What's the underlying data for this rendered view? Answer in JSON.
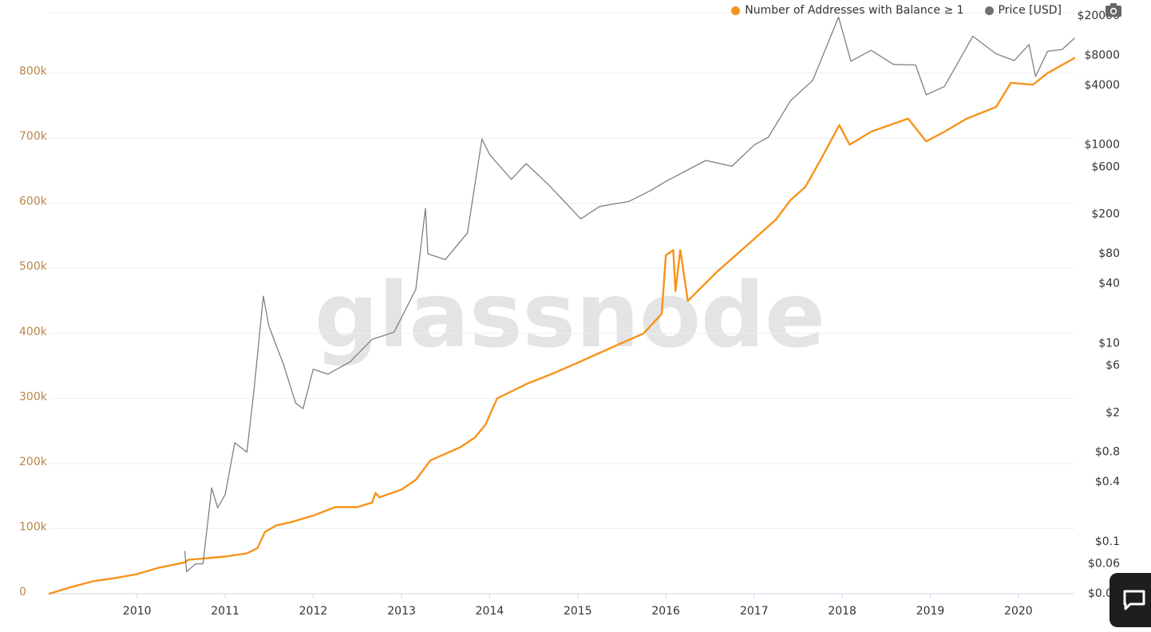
{
  "chart_data": {
    "type": "line",
    "title": "",
    "watermark": "glassnode",
    "legend_position": "top-right",
    "grid": true,
    "x_axis": {
      "type": "date",
      "range": [
        "2009-01-03",
        "2020-08-20"
      ],
      "tick_labels": [
        "2010",
        "2011",
        "2012",
        "2013",
        "2014",
        "2015",
        "2016",
        "2017",
        "2018",
        "2019",
        "2020"
      ]
    },
    "y_left": {
      "range": [
        0,
        900000
      ],
      "tick_values": [
        0,
        100000,
        200000,
        300000,
        400000,
        500000,
        600000,
        700000,
        800000
      ],
      "tick_labels": [
        "0",
        "100k",
        "200k",
        "300k",
        "400k",
        "500k",
        "600k",
        "700k",
        "800k"
      ],
      "color": "#b8864b"
    },
    "y_right": {
      "scale": "log",
      "range": [
        0.03,
        20000
      ],
      "tick_values": [
        0.03,
        0.06,
        0.1,
        0.4,
        0.8,
        2,
        6,
        10,
        40,
        80,
        200,
        600,
        1000,
        4000,
        8000,
        20000
      ],
      "tick_labels": [
        "$0.03",
        "$0.06",
        "$0.1",
        "$0.4",
        "$0.8",
        "$2",
        "$6",
        "$10",
        "$40",
        "$80",
        "$200",
        "$600",
        "$1000",
        "$4000",
        "$8000",
        "$20000"
      ],
      "color": "#333333"
    },
    "series": [
      {
        "name": "Number of Addresses with Balance ≥ 1",
        "color": "#f7931a",
        "axis": "left",
        "points": [
          [
            "2009-01-03",
            0
          ],
          [
            "2009-04-01",
            10000
          ],
          [
            "2009-07-01",
            19000
          ],
          [
            "2009-10-01",
            24000
          ],
          [
            "2010-01-01",
            30000
          ],
          [
            "2010-04-01",
            40000
          ],
          [
            "2010-07-15",
            48000
          ],
          [
            "2010-08-01",
            52000
          ],
          [
            "2011-01-01",
            57000
          ],
          [
            "2011-04-01",
            62000
          ],
          [
            "2011-05-15",
            70000
          ],
          [
            "2011-06-15",
            95000
          ],
          [
            "2011-08-01",
            105000
          ],
          [
            "2011-10-01",
            110000
          ],
          [
            "2012-01-01",
            120000
          ],
          [
            "2012-04-01",
            133000
          ],
          [
            "2012-07-01",
            133000
          ],
          [
            "2012-09-01",
            140000
          ],
          [
            "2012-09-15",
            155000
          ],
          [
            "2012-10-01",
            148000
          ],
          [
            "2013-01-01",
            160000
          ],
          [
            "2013-03-01",
            175000
          ],
          [
            "2013-05-01",
            205000
          ],
          [
            "2013-09-01",
            225000
          ],
          [
            "2013-11-01",
            240000
          ],
          [
            "2013-12-15",
            260000
          ],
          [
            "2014-02-01",
            300000
          ],
          [
            "2014-06-01",
            322000
          ],
          [
            "2014-10-01",
            340000
          ],
          [
            "2015-01-01",
            355000
          ],
          [
            "2015-06-01",
            380000
          ],
          [
            "2015-10-01",
            400000
          ],
          [
            "2015-12-15",
            430000
          ],
          [
            "2016-01-01",
            520000
          ],
          [
            "2016-02-01",
            528000
          ],
          [
            "2016-02-10",
            465000
          ],
          [
            "2016-03-01",
            528000
          ],
          [
            "2016-04-01",
            450000
          ],
          [
            "2016-08-01",
            495000
          ],
          [
            "2017-01-01",
            545000
          ],
          [
            "2017-04-01",
            575000
          ],
          [
            "2017-06-01",
            605000
          ],
          [
            "2017-08-01",
            625000
          ],
          [
            "2017-10-01",
            665000
          ],
          [
            "2017-12-20",
            720000
          ],
          [
            "2018-02-01",
            690000
          ],
          [
            "2018-05-01",
            710000
          ],
          [
            "2018-10-01",
            730000
          ],
          [
            "2018-12-15",
            695000
          ],
          [
            "2019-03-01",
            710000
          ],
          [
            "2019-06-01",
            730000
          ],
          [
            "2019-10-01",
            748000
          ],
          [
            "2019-12-01",
            785000
          ],
          [
            "2020-03-01",
            782000
          ],
          [
            "2020-05-01",
            800000
          ],
          [
            "2020-08-20",
            823000
          ]
        ]
      },
      {
        "name": "Price [USD]",
        "color": "#808080",
        "axis": "right",
        "points": [
          [
            "2010-07-18",
            0.08
          ],
          [
            "2010-07-25",
            0.05
          ],
          [
            "2010-09-01",
            0.06
          ],
          [
            "2010-10-01",
            0.06
          ],
          [
            "2010-11-06",
            0.35
          ],
          [
            "2010-12-01",
            0.22
          ],
          [
            "2011-01-01",
            0.3
          ],
          [
            "2011-02-10",
            1.0
          ],
          [
            "2011-04-01",
            0.8
          ],
          [
            "2011-05-01",
            3.5
          ],
          [
            "2011-06-08",
            30
          ],
          [
            "2011-07-01",
            15
          ],
          [
            "2011-09-01",
            6
          ],
          [
            "2011-10-20",
            2.5
          ],
          [
            "2011-11-20",
            2.2
          ],
          [
            "2012-01-01",
            5.5
          ],
          [
            "2012-03-01",
            4.9
          ],
          [
            "2012-06-01",
            6.5
          ],
          [
            "2012-09-01",
            11
          ],
          [
            "2012-12-01",
            13
          ],
          [
            "2013-03-01",
            35
          ],
          [
            "2013-04-10",
            230
          ],
          [
            "2013-04-20",
            80
          ],
          [
            "2013-07-01",
            70
          ],
          [
            "2013-10-01",
            130
          ],
          [
            "2013-11-30",
            1150
          ],
          [
            "2014-01-01",
            800
          ],
          [
            "2014-04-01",
            450
          ],
          [
            "2014-06-01",
            650
          ],
          [
            "2014-09-01",
            400
          ],
          [
            "2015-01-14",
            180
          ],
          [
            "2015-04-01",
            240
          ],
          [
            "2015-08-01",
            270
          ],
          [
            "2015-11-01",
            350
          ],
          [
            "2016-01-01",
            430
          ],
          [
            "2016-06-15",
            700
          ],
          [
            "2016-10-01",
            610
          ],
          [
            "2017-01-01",
            1000
          ],
          [
            "2017-03-01",
            1200
          ],
          [
            "2017-06-01",
            2800
          ],
          [
            "2017-09-01",
            4500
          ],
          [
            "2017-12-17",
            19500
          ],
          [
            "2018-02-06",
            7000
          ],
          [
            "2018-05-01",
            9000
          ],
          [
            "2018-08-01",
            6500
          ],
          [
            "2018-11-01",
            6400
          ],
          [
            "2018-12-15",
            3200
          ],
          [
            "2019-03-01",
            3900
          ],
          [
            "2019-06-26",
            12500
          ],
          [
            "2019-10-01",
            8300
          ],
          [
            "2019-12-15",
            7100
          ],
          [
            "2020-02-14",
            10300
          ],
          [
            "2020-03-12",
            4900
          ],
          [
            "2020-05-01",
            8800
          ],
          [
            "2020-07-01",
            9200
          ],
          [
            "2020-08-20",
            11900
          ]
        ]
      }
    ]
  }
}
